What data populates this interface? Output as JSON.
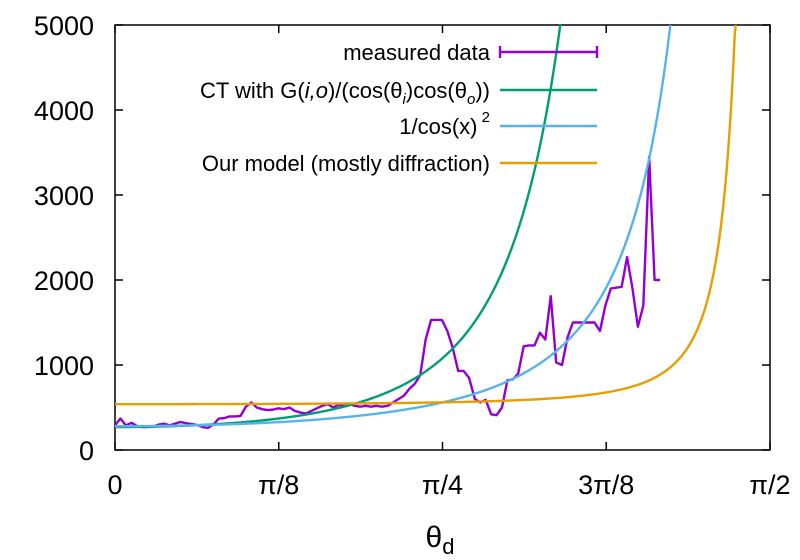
{
  "chart_data": {
    "type": "line",
    "xlabel": "θ",
    "xlabel_sub": "d",
    "xlim": [
      0,
      1.5708
    ],
    "ylim": [
      0,
      5000
    ],
    "xticks": [
      {
        "value": 0,
        "label": "0"
      },
      {
        "value": 0.3927,
        "label": "π/8"
      },
      {
        "value": 0.7854,
        "label": "π/4"
      },
      {
        "value": 1.1781,
        "label": "3π/8"
      },
      {
        "value": 1.5708,
        "label": "π/2"
      }
    ],
    "yticks": [
      {
        "value": 0,
        "label": "0"
      },
      {
        "value": 1000,
        "label": "1000"
      },
      {
        "value": 2000,
        "label": "2000"
      },
      {
        "value": 3000,
        "label": "3000"
      },
      {
        "value": 4000,
        "label": "4000"
      },
      {
        "value": 5000,
        "label": "5000"
      }
    ],
    "legend_position": "top-right",
    "series": [
      {
        "name": "measured data",
        "color": "#9400d3",
        "points": [
          [
            0.0,
            290
          ],
          [
            0.013,
            370
          ],
          [
            0.026,
            290
          ],
          [
            0.04,
            320
          ],
          [
            0.053,
            280
          ],
          [
            0.066,
            270
          ],
          [
            0.079,
            270
          ],
          [
            0.092,
            275
          ],
          [
            0.105,
            300
          ],
          [
            0.118,
            310
          ],
          [
            0.131,
            290
          ],
          [
            0.144,
            310
          ],
          [
            0.157,
            330
          ],
          [
            0.17,
            315
          ],
          [
            0.183,
            305
          ],
          [
            0.196,
            295
          ],
          [
            0.21,
            270
          ],
          [
            0.223,
            260
          ],
          [
            0.236,
            300
          ],
          [
            0.249,
            370
          ],
          [
            0.262,
            375
          ],
          [
            0.275,
            395
          ],
          [
            0.288,
            395
          ],
          [
            0.301,
            400
          ],
          [
            0.314,
            510
          ],
          [
            0.327,
            560
          ],
          [
            0.34,
            500
          ],
          [
            0.353,
            480
          ],
          [
            0.366,
            470
          ],
          [
            0.379,
            475
          ],
          [
            0.392,
            490
          ],
          [
            0.405,
            480
          ],
          [
            0.418,
            500
          ],
          [
            0.431,
            460
          ],
          [
            0.445,
            440
          ],
          [
            0.458,
            430
          ],
          [
            0.471,
            460
          ],
          [
            0.484,
            490
          ],
          [
            0.497,
            520
          ],
          [
            0.51,
            540
          ],
          [
            0.523,
            500
          ],
          [
            0.536,
            530
          ],
          [
            0.549,
            520
          ],
          [
            0.562,
            540
          ],
          [
            0.575,
            520
          ],
          [
            0.588,
            510
          ],
          [
            0.601,
            520
          ],
          [
            0.614,
            510
          ],
          [
            0.627,
            520
          ],
          [
            0.64,
            510
          ],
          [
            0.654,
            520
          ],
          [
            0.667,
            560
          ],
          [
            0.68,
            600
          ],
          [
            0.693,
            640
          ],
          [
            0.706,
            720
          ],
          [
            0.719,
            780
          ],
          [
            0.732,
            880
          ],
          [
            0.745,
            1300
          ],
          [
            0.758,
            1530
          ],
          [
            0.771,
            1530
          ],
          [
            0.784,
            1530
          ],
          [
            0.797,
            1400
          ],
          [
            0.81,
            1200
          ],
          [
            0.823,
            930
          ],
          [
            0.836,
            930
          ],
          [
            0.849,
            850
          ],
          [
            0.863,
            600
          ],
          [
            0.876,
            560
          ],
          [
            0.889,
            590
          ],
          [
            0.902,
            420
          ],
          [
            0.915,
            410
          ],
          [
            0.928,
            500
          ],
          [
            0.941,
            820
          ],
          [
            0.954,
            830
          ],
          [
            0.967,
            900
          ],
          [
            0.98,
            1220
          ],
          [
            0.993,
            1230
          ],
          [
            1.006,
            1230
          ],
          [
            1.019,
            1380
          ],
          [
            1.032,
            1300
          ],
          [
            1.045,
            1810
          ],
          [
            1.058,
            1030
          ],
          [
            1.072,
            1000
          ],
          [
            1.085,
            1320
          ],
          [
            1.098,
            1500
          ],
          [
            1.111,
            1500
          ],
          [
            1.124,
            1500
          ],
          [
            1.137,
            1500
          ],
          [
            1.15,
            1500
          ],
          [
            1.163,
            1400
          ],
          [
            1.176,
            1700
          ],
          [
            1.189,
            1900
          ],
          [
            1.202,
            1910
          ],
          [
            1.215,
            1920
          ],
          [
            1.228,
            2270
          ],
          [
            1.241,
            1900
          ],
          [
            1.254,
            1450
          ],
          [
            1.267,
            1700
          ],
          [
            1.281,
            3450
          ],
          [
            1.294,
            2000
          ],
          [
            1.307,
            2000
          ]
        ]
      },
      {
        "name": "CT with G(i,o)/(cos(θi)cos(θo))",
        "color": "#009e73",
        "fn": "ct"
      },
      {
        "name": "1/cos(x)^2",
        "color": "#56b4e9",
        "fn": "sec2"
      },
      {
        "name": "Our model (mostly diffraction)",
        "color": "#e69f00",
        "fn": "model"
      }
    ]
  }
}
